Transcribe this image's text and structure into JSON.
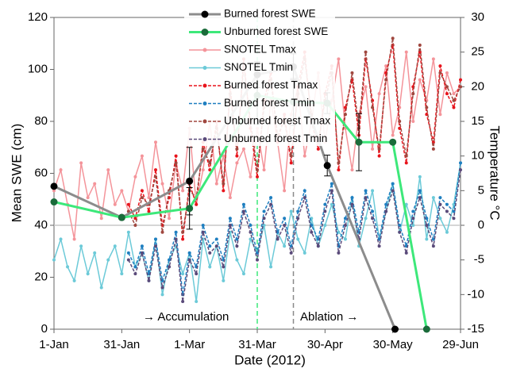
{
  "chart_data": {
    "type": "line",
    "x_label": "Date (2012)",
    "y_label": "Mean SWE (cm)",
    "y2_label": "Temperature °C",
    "xlim": [
      0,
      180
    ],
    "xticks": [
      {
        "value": 0,
        "label": "1-Jan"
      },
      {
        "value": 30,
        "label": "31-Jan"
      },
      {
        "value": 60,
        "label": "1-Mar"
      },
      {
        "value": 90,
        "label": "31-Mar"
      },
      {
        "value": 120,
        "label": "30-Apr"
      },
      {
        "value": 150,
        "label": "30-May"
      },
      {
        "value": 180,
        "label": "29-Jun"
      }
    ],
    "ylim": [
      0,
      120
    ],
    "yticks": [
      0,
      20,
      40,
      60,
      80,
      100,
      120
    ],
    "y2lim": [
      -15,
      30
    ],
    "y2ticks": [
      -15,
      -10,
      -5,
      0,
      5,
      10,
      15,
      20,
      25,
      30
    ],
    "zero_line": true,
    "vlines": [
      {
        "x": 90,
        "color": "#3de87a"
      },
      {
        "x": 106,
        "color": "#8a8a8a"
      }
    ],
    "annotations": [
      "→ Accumulation",
      "Ablation →"
    ],
    "series": [
      {
        "name": "Burned forest SWE",
        "color": "#8c8c8c",
        "marker_color": "#000000",
        "axis": "y",
        "dash": false,
        "x": [
          0,
          30,
          60,
          90,
          106,
          121,
          151
        ],
        "values": [
          55,
          43,
          57,
          98,
          101,
          63,
          0
        ],
        "errors": [
          null,
          null,
          13,
          5,
          5,
          4,
          null
        ]
      },
      {
        "name": "Unburned forest SWE",
        "color": "#3de87a",
        "marker_color": "#1a6b3a",
        "axis": "y",
        "dash": false,
        "x": [
          0,
          30,
          60,
          90,
          106,
          121,
          135,
          150,
          165
        ],
        "values": [
          49,
          43,
          46.5,
          90,
          87.5,
          87,
          72,
          72,
          0
        ],
        "errors": [
          null,
          null,
          8,
          11,
          9,
          4,
          11,
          null,
          null
        ]
      },
      {
        "name": "SNOTEL Tmax",
        "color": "#f4949a",
        "marker_color": "#f4949a",
        "axis": "y2",
        "dash": false,
        "x": [
          0,
          3,
          6,
          9,
          12,
          15,
          18,
          21,
          24,
          27,
          30,
          33,
          36,
          39,
          42,
          45,
          48,
          51,
          54,
          57,
          60,
          63,
          66,
          69,
          72,
          75,
          78,
          81,
          84,
          87,
          90,
          93,
          96,
          99,
          102,
          105,
          108,
          111,
          114,
          117,
          120,
          123,
          126,
          129,
          132,
          135,
          138,
          141,
          144,
          147,
          150,
          153,
          156,
          159,
          162,
          165,
          168,
          171,
          174,
          177,
          180
        ],
        "values": [
          5,
          8,
          3,
          -2,
          9,
          4,
          6,
          1,
          8,
          3,
          5,
          2,
          7,
          10,
          4,
          12,
          6,
          1,
          9,
          5,
          14,
          3,
          8,
          15,
          6,
          10,
          4,
          9,
          11,
          7,
          14,
          8,
          18,
          12,
          5,
          16,
          20,
          10,
          15,
          22,
          12,
          18,
          24,
          14,
          8,
          16,
          20,
          11,
          19,
          23,
          13,
          17,
          25,
          15,
          21,
          18,
          24,
          16,
          22,
          19,
          20
        ]
      },
      {
        "name": "SNOTEL Tmin",
        "color": "#6ccad8",
        "marker_color": "#6ccad8",
        "axis": "y2",
        "dash": false,
        "x": [
          0,
          3,
          6,
          9,
          12,
          15,
          18,
          21,
          24,
          27,
          30,
          33,
          36,
          39,
          42,
          45,
          48,
          51,
          54,
          57,
          60,
          63,
          66,
          69,
          72,
          75,
          78,
          81,
          84,
          87,
          90,
          93,
          96,
          99,
          102,
          105,
          108,
          111,
          114,
          117,
          120,
          123,
          126,
          129,
          132,
          135,
          138,
          141,
          144,
          147,
          150,
          153,
          156,
          159,
          162,
          165,
          168,
          171,
          174,
          177,
          180
        ],
        "values": [
          -5,
          -2,
          -6,
          -8,
          -3,
          -7,
          -4,
          -9,
          -5,
          -3,
          -7,
          -1,
          -6,
          -4,
          -8,
          -2,
          -10,
          -5,
          -3,
          -7,
          -4,
          -11,
          -2,
          -6,
          -3,
          -8,
          -1,
          -5,
          -7,
          -2,
          -4,
          0,
          -6,
          -1,
          -3,
          2,
          -2,
          -4,
          1,
          -3,
          0,
          3,
          -1,
          -2,
          4,
          -3,
          1,
          5,
          -2,
          2,
          6,
          -1,
          3,
          0,
          7,
          -2,
          4,
          1,
          -1,
          3,
          9
        ]
      },
      {
        "name": "Burned forest Tmax",
        "color": "#e8141c",
        "marker_color": "#e8141c",
        "axis": "y2",
        "dash": true,
        "x": [
          33,
          36,
          39,
          42,
          45,
          48,
          51,
          54,
          57,
          60,
          63,
          66,
          69,
          72,
          75,
          78,
          81,
          84,
          87,
          90,
          93,
          96,
          99,
          102,
          105,
          108,
          111,
          114,
          117,
          120,
          123,
          126,
          129,
          132,
          135,
          138,
          141,
          144,
          147,
          150,
          153,
          156,
          159,
          162,
          165,
          168,
          171,
          174,
          177,
          180
        ],
        "values": [
          3,
          1,
          5,
          2,
          8,
          0,
          4,
          10,
          -2,
          6,
          3,
          12,
          8,
          15,
          5,
          20,
          10,
          24,
          14,
          7,
          18,
          22,
          12,
          16,
          9,
          20,
          25,
          15,
          11,
          19,
          23,
          8,
          17,
          21,
          13,
          24,
          18,
          10,
          22,
          26,
          14,
          9,
          20,
          25,
          16,
          12,
          23,
          19,
          17,
          21
        ]
      },
      {
        "name": "Burned forest Tmin",
        "color": "#1f7fc0",
        "marker_color": "#1f7fc0",
        "axis": "y2",
        "dash": true,
        "x": [
          33,
          36,
          39,
          42,
          45,
          48,
          51,
          54,
          57,
          60,
          63,
          66,
          69,
          72,
          75,
          78,
          81,
          84,
          87,
          90,
          93,
          96,
          99,
          102,
          105,
          108,
          111,
          114,
          117,
          120,
          123,
          126,
          129,
          132,
          135,
          138,
          141,
          144,
          147,
          150,
          153,
          156,
          159,
          162,
          165,
          168,
          171,
          174,
          177,
          180
        ],
        "values": [
          -4,
          -6,
          -3,
          -7,
          -2,
          -8,
          -5,
          -1,
          -10,
          -4,
          -6,
          0,
          -3,
          -2,
          -5,
          1,
          -2,
          3,
          0,
          -4,
          2,
          4,
          -1,
          1,
          -3,
          2,
          5,
          0,
          -2,
          3,
          6,
          -3,
          1,
          4,
          -1,
          5,
          2,
          -2,
          3,
          6,
          0,
          -3,
          2,
          5,
          1,
          -2,
          4,
          3,
          2,
          9
        ]
      },
      {
        "name": "Unburned forest Tmax",
        "color": "#a0473f",
        "marker_color": "#a0473f",
        "axis": "y2",
        "dash": true,
        "x": [
          33,
          36,
          39,
          42,
          45,
          48,
          51,
          54,
          57,
          60,
          63,
          66,
          69,
          72,
          75,
          78,
          81,
          84,
          87,
          90,
          93,
          96,
          99,
          102,
          105,
          108,
          111,
          114,
          117,
          120,
          123,
          126,
          129,
          132,
          135,
          138,
          141,
          144,
          147,
          150,
          153,
          156,
          159,
          162,
          165,
          168,
          171,
          174,
          177,
          180
        ],
        "values": [
          2,
          0,
          4,
          3,
          7,
          -1,
          5,
          9,
          -1,
          5,
          4,
          11,
          9,
          14,
          6,
          19,
          11,
          23,
          15,
          8,
          17,
          21,
          13,
          15,
          10,
          19,
          24,
          16,
          12,
          18,
          22,
          9,
          16,
          22,
          14,
          25,
          17,
          11,
          21,
          27,
          15,
          10,
          19,
          26,
          17,
          11,
          22,
          20,
          18,
          20
        ]
      },
      {
        "name": "Unburned forest Tmin",
        "color": "#5a4a7a",
        "marker_color": "#5a4a7a",
        "axis": "y2",
        "dash": true,
        "x": [
          33,
          36,
          39,
          42,
          45,
          48,
          51,
          54,
          57,
          60,
          63,
          66,
          69,
          72,
          75,
          78,
          81,
          84,
          87,
          90,
          93,
          96,
          99,
          102,
          105,
          108,
          111,
          114,
          117,
          120,
          123,
          126,
          129,
          132,
          135,
          138,
          141,
          144,
          147,
          150,
          153,
          156,
          159,
          162,
          165,
          168,
          171,
          174,
          177,
          180
        ],
        "values": [
          -5,
          -7,
          -4,
          -8,
          -3,
          -9,
          -6,
          -2,
          -11,
          -5,
          -7,
          -1,
          -4,
          -3,
          -6,
          0,
          -3,
          2,
          -1,
          -5,
          1,
          3,
          -2,
          0,
          -4,
          1,
          4,
          -1,
          -3,
          2,
          5,
          -4,
          0,
          3,
          -2,
          4,
          1,
          -3,
          2,
          5,
          -1,
          -4,
          1,
          4,
          0,
          -3,
          3,
          2,
          1,
          8
        ]
      }
    ]
  }
}
